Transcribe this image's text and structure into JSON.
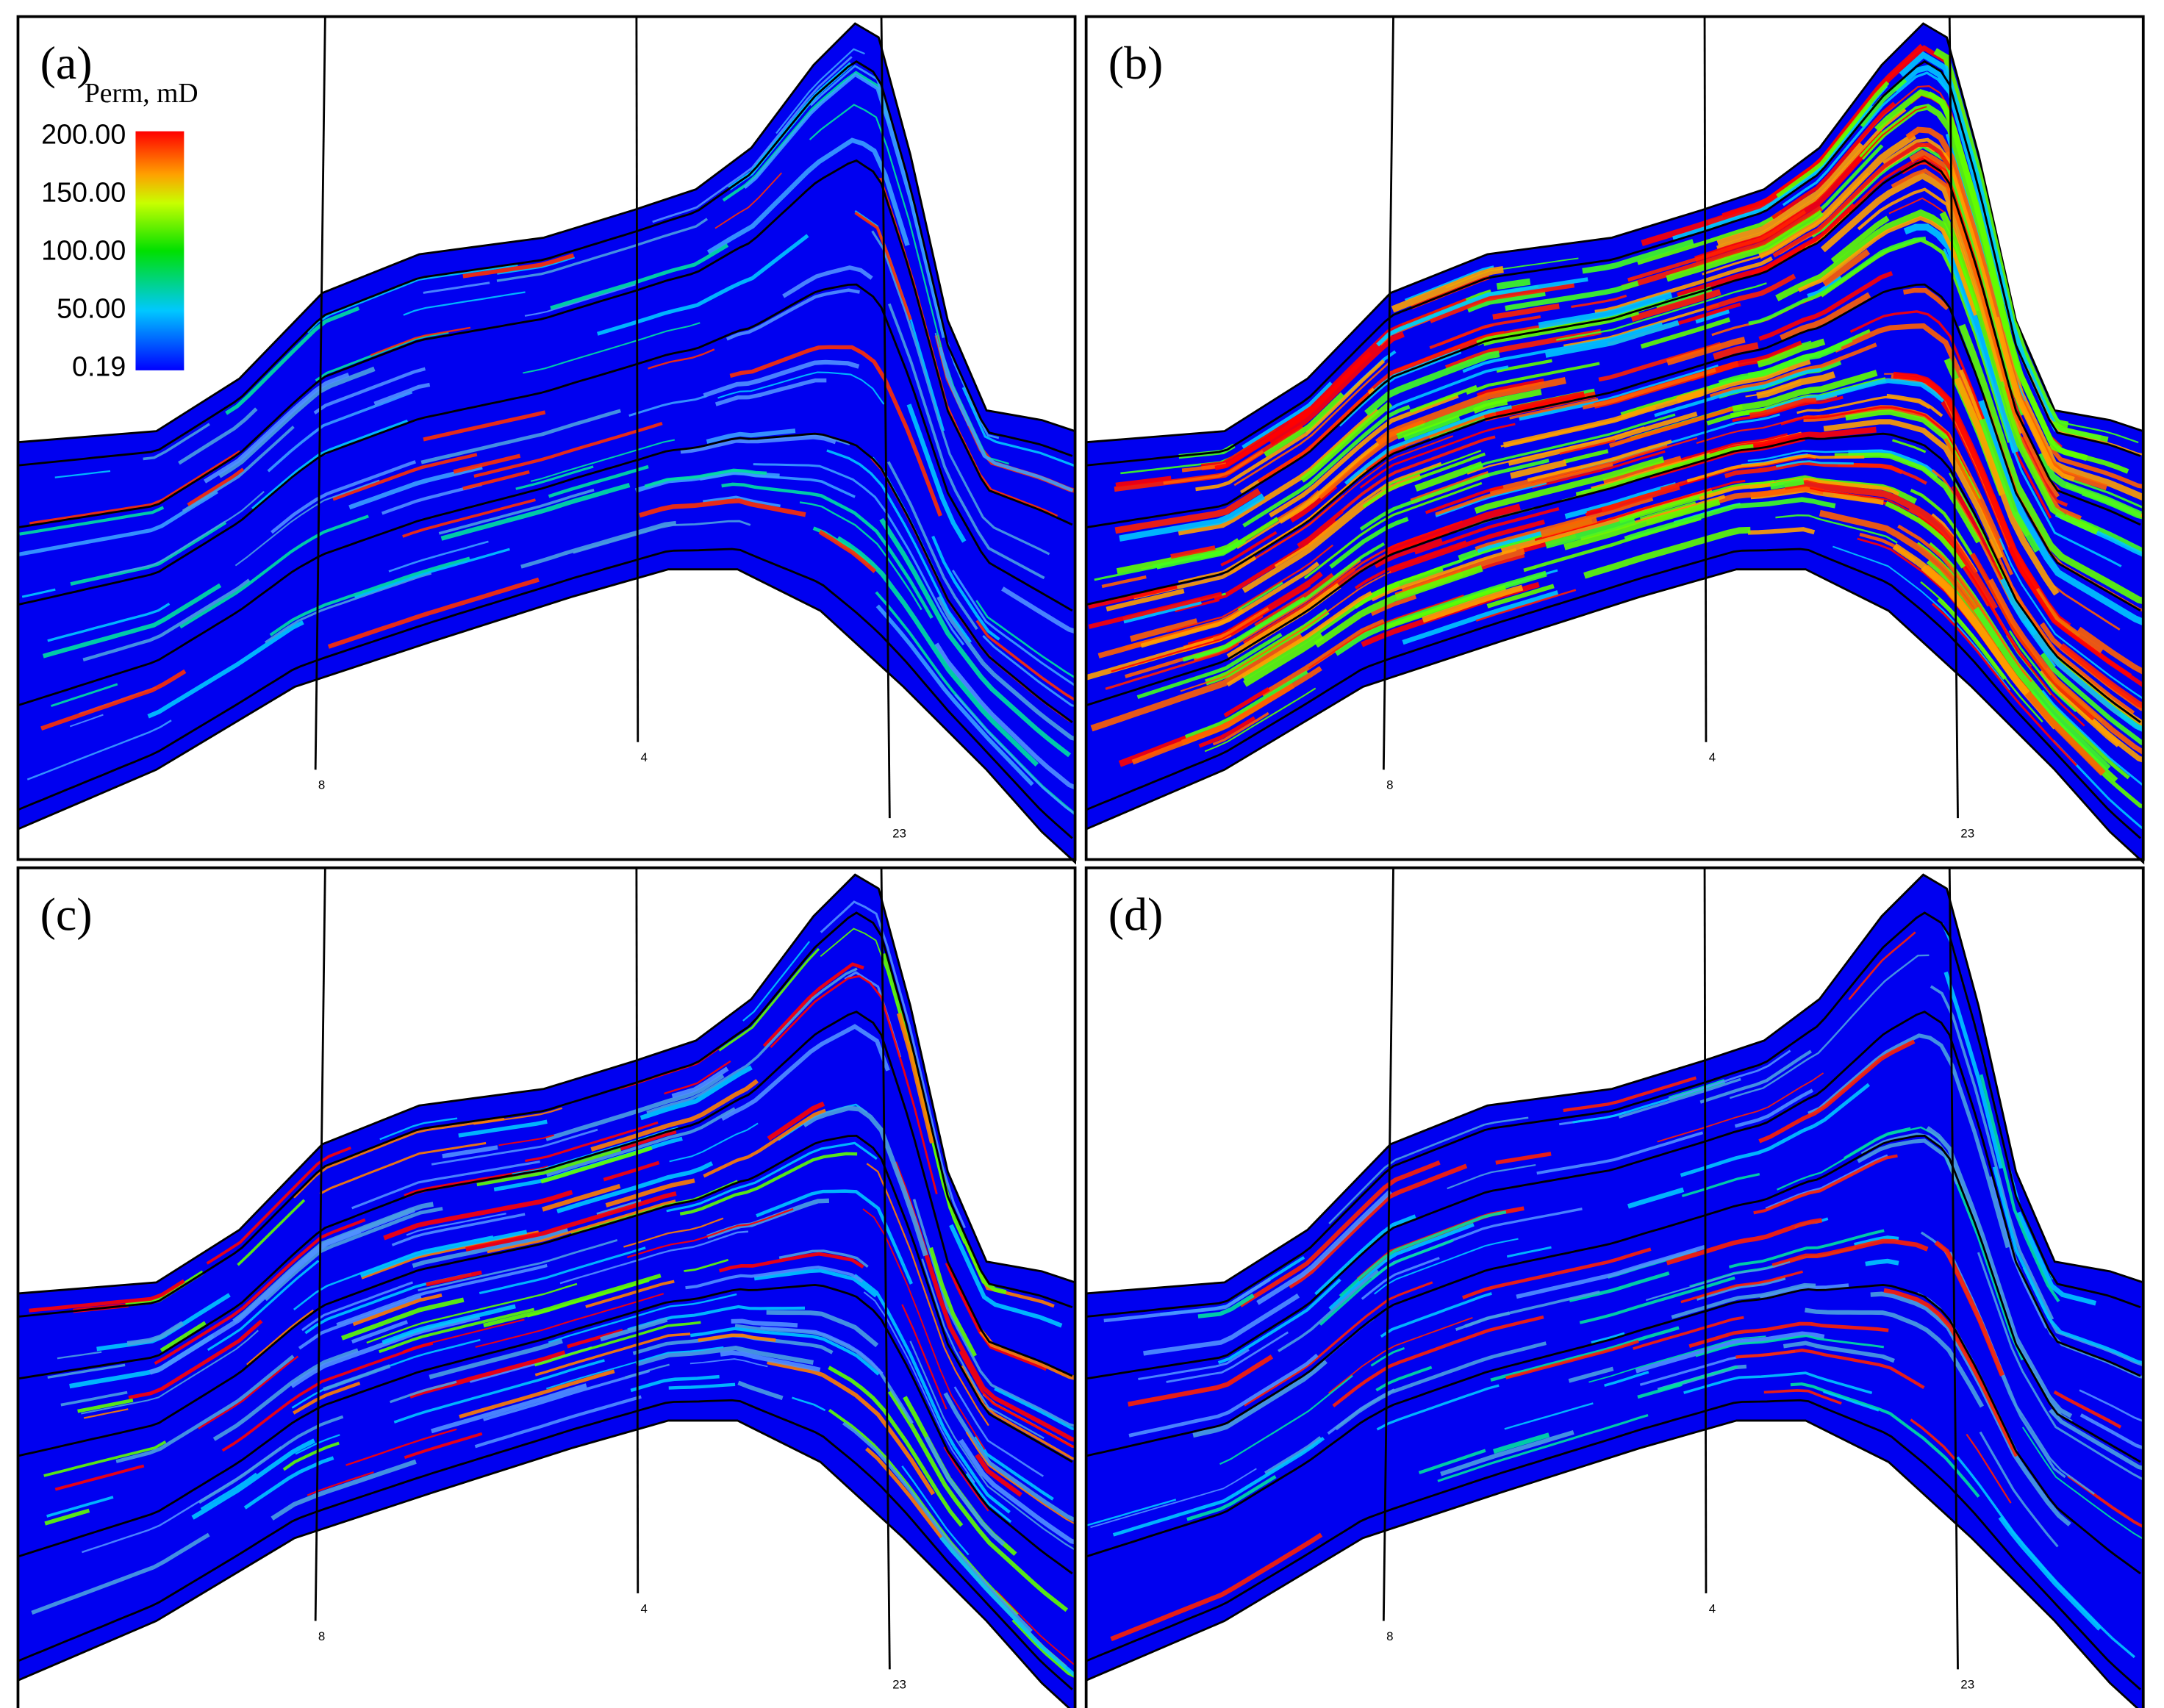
{
  "panels": [
    {
      "label": "(a)",
      "wells": [
        "8",
        "4",
        "23"
      ]
    },
    {
      "label": "(b)",
      "wells": [
        "8",
        "4",
        "23"
      ]
    },
    {
      "label": "(c)",
      "wells": [
        "8",
        "4",
        "23"
      ]
    },
    {
      "label": "(d)",
      "wells": [
        "8",
        "4",
        "23"
      ]
    }
  ],
  "colorbar": {
    "title": "Perm, mD",
    "ticks": [
      "200.00",
      "150.00",
      "100.00",
      "50.00",
      "0.19"
    ]
  }
}
